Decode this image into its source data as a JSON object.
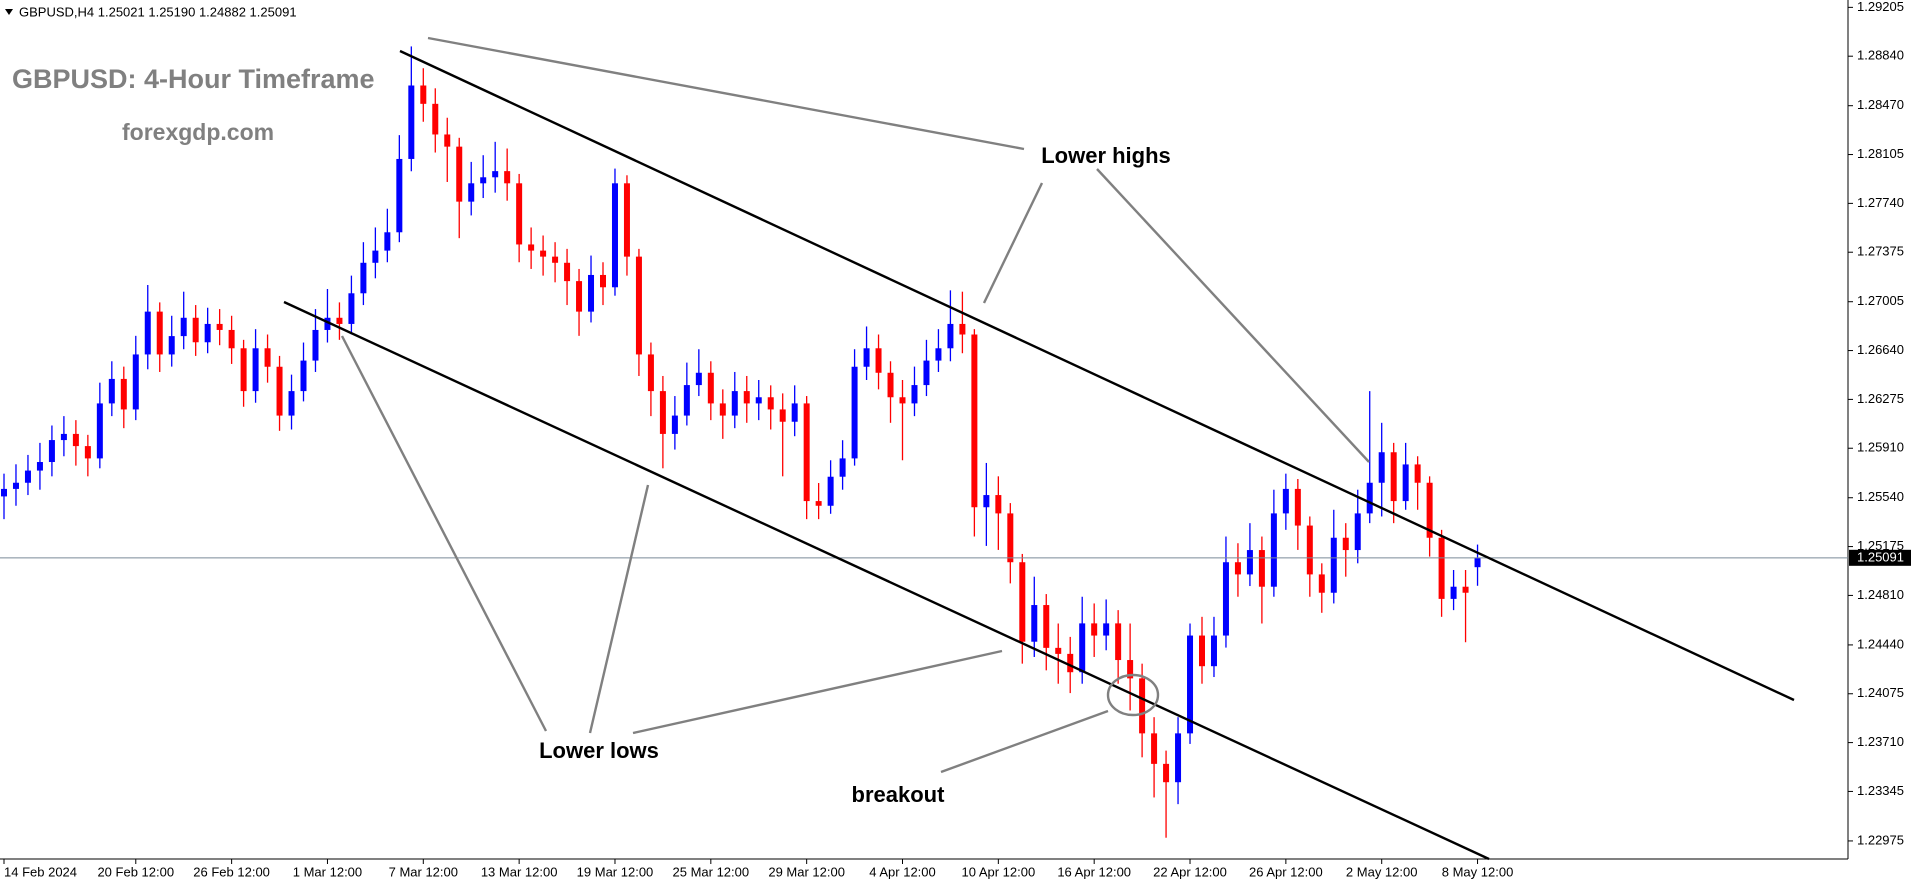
{
  "chart_data": {
    "type": "candlestick",
    "info_line": "GBPUSD,H4  1.25021 1.25190 1.24882 1.25091",
    "title": "GBPUSD: 4-Hour Timeframe",
    "subtitle": "forexgdp.com",
    "annotations": [
      "Lower highs",
      "Lower lows",
      "breakout"
    ],
    "up_color": "#0000ff",
    "down_color": "#ff0000",
    "grid": false,
    "ylim": [
      1.2284,
      1.2926
    ],
    "yticks": [
      1.29205,
      {
        "value": 1.2884,
        "label": "1.28840"
      },
      {
        "value": 1.2847,
        "label": "1.28470"
      },
      1.28105,
      {
        "value": 1.2774,
        "label": "1.27740"
      },
      1.27375,
      1.27005,
      {
        "value": 1.2664,
        "label": "1.26640"
      },
      1.26275,
      {
        "value": 1.2591,
        "label": "1.25910"
      },
      {
        "value": 1.2554,
        "label": "1.25540"
      },
      1.25175,
      {
        "value": 1.2481,
        "label": "1.24810"
      },
      {
        "value": 1.2444,
        "label": "1.24440"
      },
      1.24075,
      {
        "value": 1.2371,
        "label": "1.23710"
      },
      1.23345,
      1.22975
    ],
    "current_price": {
      "value": 1.25091,
      "label": "1.25091"
    },
    "categories": [
      "14 Feb 2024",
      null,
      null,
      null,
      null,
      null,
      null,
      null,
      null,
      null,
      null,
      "20 Feb 12:00",
      null,
      null,
      null,
      null,
      null,
      null,
      null,
      "26 Feb 12:00",
      null,
      null,
      null,
      null,
      null,
      null,
      null,
      "1 Mar 12:00",
      null,
      null,
      null,
      null,
      null,
      null,
      null,
      "7 Mar 12:00",
      null,
      null,
      null,
      null,
      null,
      null,
      null,
      "13 Mar 12:00",
      null,
      null,
      null,
      null,
      null,
      null,
      null,
      "19 Mar 12:00",
      null,
      null,
      null,
      null,
      null,
      null,
      null,
      "25 Mar 12:00",
      null,
      null,
      null,
      null,
      null,
      null,
      null,
      "29 Mar 12:00",
      null,
      null,
      null,
      null,
      null,
      null,
      null,
      "4 Apr 12:00",
      null,
      null,
      null,
      null,
      null,
      null,
      null,
      "10 Apr 12:00",
      null,
      null,
      null,
      null,
      null,
      null,
      null,
      "16 Apr 12:00",
      null,
      null,
      null,
      null,
      null,
      null,
      null,
      "22 Apr 12:00",
      null,
      null,
      null,
      null,
      null,
      null,
      null,
      "26 Apr 12:00",
      null,
      null,
      null,
      null,
      null,
      null,
      null,
      "2 May 12:00",
      null,
      null,
      null,
      null,
      null,
      null,
      null,
      "8 May 12:00"
    ],
    "open": [
      1.2555,
      1.25606,
      1.25652,
      1.25743,
      1.25807,
      1.25971,
      1.26017,
      1.25926,
      1.25834,
      1.26245,
      1.26428,
      1.262,
      1.26611,
      1.26931,
      1.26611,
      1.26748,
      1.26885,
      1.26702,
      1.26839,
      1.26794,
      1.26657,
      1.26337,
      1.26657,
      1.26519,
      1.26154,
      1.26337,
      1.26565,
      1.26794,
      1.26885,
      1.26839,
      1.27068,
      1.27296,
      1.27387,
      1.27524,
      1.28072,
      1.28621,
      1.28484,
      1.28255,
      1.28164,
      1.27753,
      1.2789,
      1.27935,
      1.27981,
      1.2789,
      1.27433,
      1.27387,
      1.27342,
      1.27296,
      1.27159,
      1.26931,
      1.27205,
      1.27113,
      1.2789,
      1.27342,
      1.26611,
      1.26337,
      1.26017,
      1.26154,
      1.26382,
      1.26474,
      1.26245,
      1.26154,
      1.26337,
      1.26245,
      1.26291,
      1.262,
      1.26108,
      1.26245,
      1.25515,
      1.2548,
      1.25697,
      1.25834,
      1.26519,
      1.26657,
      1.26474,
      1.26291,
      1.26245,
      1.26382,
      1.26565,
      1.26657,
      1.26839,
      1.2676,
      1.25469,
      1.2556,
      1.25423,
      1.25058,
      1.24464,
      1.24738,
      1.24418,
      1.24373,
      1.24236,
      1.24601,
      1.2451,
      1.24601,
      1.24327,
      1.2419,
      1.23779,
      1.23551,
      1.23414,
      1.23779,
      1.2451,
      1.24281,
      1.2451,
      1.25058,
      1.24967,
      1.25149,
      1.24875,
      1.25423,
      1.25606,
      1.25332,
      1.24967,
      1.2483,
      1.25241,
      1.25149,
      1.25423,
      1.25652,
      1.2588,
      1.25515,
      1.25789,
      1.25652,
      1.25241,
      1.24784,
      1.24875,
      1.25021
    ],
    "high": [
      1.2572,
      1.2579,
      1.2586,
      1.2595,
      1.2608,
      1.2615,
      1.2612,
      1.2601,
      1.264,
      1.2656,
      1.2652,
      1.2675,
      1.2713,
      1.27,
      1.269,
      1.2708,
      1.2698,
      1.2696,
      1.2695,
      1.269,
      1.2672,
      1.268,
      1.2676,
      1.266,
      1.2646,
      1.267,
      1.2695,
      1.271,
      1.27,
      1.272,
      1.2745,
      1.2756,
      1.277,
      1.2825,
      1.28913,
      1.2875,
      1.286,
      1.2838,
      1.2823,
      1.2805,
      1.281,
      1.282,
      1.2815,
      1.2796,
      1.2756,
      1.275,
      1.2745,
      1.274,
      1.2725,
      1.2735,
      1.273,
      1.28,
      1.2795,
      1.274,
      1.267,
      1.2645,
      1.263,
      1.2655,
      1.2665,
      1.2656,
      1.2635,
      1.2648,
      1.2645,
      1.2642,
      1.2638,
      1.2632,
      1.2638,
      1.263,
      1.2565,
      1.2582,
      1.2597,
      1.2665,
      1.2682,
      1.2676,
      1.2656,
      1.2642,
      1.2652,
      1.2672,
      1.268,
      1.2709,
      1.2708,
      1.268,
      1.258,
      1.257,
      1.255,
      1.2512,
      1.2495,
      1.2482,
      1.246,
      1.245,
      1.248,
      1.2475,
      1.2478,
      1.247,
      1.246,
      1.243,
      1.239,
      1.2365,
      1.239,
      1.246,
      1.2465,
      1.2465,
      1.2525,
      1.252,
      1.2535,
      1.2525,
      1.256,
      1.2572,
      1.2568,
      1.254,
      1.2505,
      1.2545,
      1.2535,
      1.256,
      1.26337,
      1.261,
      1.2595,
      1.2595,
      1.2585,
      1.257,
      1.253,
      1.25,
      1.25,
      1.2519
    ],
    "low": [
      1.2538,
      1.2548,
      1.2556,
      1.256,
      1.257,
      1.2585,
      1.2578,
      1.257,
      1.2576,
      1.2615,
      1.2606,
      1.2612,
      1.265,
      1.2648,
      1.2652,
      1.2665,
      1.266,
      1.2662,
      1.2668,
      1.2654,
      1.2622,
      1.2625,
      1.264,
      1.2604,
      1.2605,
      1.2626,
      1.2648,
      1.267,
      1.2672,
      1.2676,
      1.2698,
      1.2718,
      1.273,
      1.2745,
      1.2798,
      1.2835,
      1.2812,
      1.279,
      1.2748,
      1.2765,
      1.2778,
      1.2782,
      1.2776,
      1.273,
      1.2725,
      1.272,
      1.2715,
      1.2698,
      1.2675,
      1.2685,
      1.2698,
      1.2705,
      1.272,
      1.2645,
      1.2615,
      1.2576,
      1.259,
      1.2608,
      1.263,
      1.2612,
      1.2598,
      1.2606,
      1.261,
      1.2612,
      1.2605,
      1.257,
      1.26,
      1.2538,
      1.2538,
      1.2542,
      1.256,
      1.2578,
      1.2642,
      1.2635,
      1.261,
      1.2582,
      1.2615,
      1.263,
      1.2648,
      1.2656,
      1.2662,
      1.2525,
      1.2518,
      1.2515,
      1.249,
      1.243,
      1.2435,
      1.2425,
      1.2415,
      1.2408,
      1.2415,
      1.2435,
      1.244,
      1.2415,
      1.2395,
      1.236,
      1.233,
      1.22999,
      1.2325,
      1.237,
      1.2415,
      1.242,
      1.2442,
      1.248,
      1.2488,
      1.246,
      1.248,
      1.253,
      1.2515,
      1.248,
      1.2468,
      1.2475,
      1.2495,
      1.2505,
      1.2535,
      1.254,
      1.2535,
      1.2545,
      1.2545,
      1.251,
      1.2465,
      1.247,
      1.2446,
      1.24882
    ],
    "close": [
      1.25606,
      1.25652,
      1.25743,
      1.25807,
      1.25971,
      1.26017,
      1.25926,
      1.25834,
      1.26245,
      1.26428,
      1.262,
      1.26611,
      1.26931,
      1.26611,
      1.26748,
      1.26885,
      1.26702,
      1.26839,
      1.26794,
      1.26657,
      1.26337,
      1.26657,
      1.26519,
      1.26154,
      1.26337,
      1.26565,
      1.26794,
      1.26885,
      1.26839,
      1.27068,
      1.27296,
      1.27387,
      1.27524,
      1.28072,
      1.28621,
      1.28484,
      1.28255,
      1.28164,
      1.27753,
      1.2789,
      1.27935,
      1.27981,
      1.2789,
      1.27433,
      1.27387,
      1.27342,
      1.27296,
      1.27159,
      1.26931,
      1.27205,
      1.27113,
      1.2789,
      1.27342,
      1.26611,
      1.26337,
      1.26017,
      1.26154,
      1.26382,
      1.26474,
      1.26245,
      1.26154,
      1.26337,
      1.26245,
      1.26291,
      1.262,
      1.26108,
      1.26245,
      1.25515,
      1.2548,
      1.25697,
      1.25834,
      1.26519,
      1.26657,
      1.26474,
      1.26291,
      1.26245,
      1.26382,
      1.26565,
      1.26657,
      1.26839,
      1.2676,
      1.25469,
      1.2556,
      1.25423,
      1.25058,
      1.24464,
      1.24738,
      1.24418,
      1.24373,
      1.24236,
      1.24601,
      1.2451,
      1.24601,
      1.24327,
      1.2419,
      1.23779,
      1.23551,
      1.23414,
      1.23779,
      1.2451,
      1.24281,
      1.2451,
      1.25058,
      1.24967,
      1.25149,
      1.24875,
      1.25423,
      1.25606,
      1.25332,
      1.24967,
      1.2483,
      1.25241,
      1.25149,
      1.25423,
      1.25652,
      1.2588,
      1.25515,
      1.25789,
      1.25652,
      1.25241,
      1.24784,
      1.24875,
      1.2483,
      1.25091
    ]
  }
}
